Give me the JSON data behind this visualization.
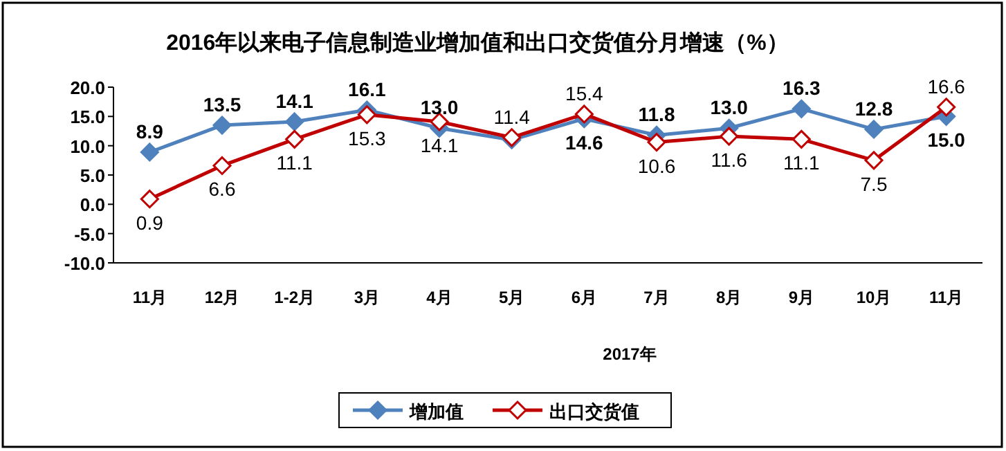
{
  "chart_data": {
    "type": "line",
    "title": "2016年以来电子信息制造业增加值和出口交货值分月增速（%）",
    "xlabel": "2017年",
    "categories": [
      "11月",
      "12月",
      "1-2月",
      "3月",
      "4月",
      "5月",
      "6月",
      "7月",
      "8月",
      "9月",
      "10月",
      "11月"
    ],
    "series": [
      {
        "name": "增加值",
        "color": "#4f81bd",
        "marker": "diamond",
        "values": [
          8.9,
          13.5,
          14.1,
          16.1,
          13.0,
          11.0,
          14.6,
          11.8,
          13.0,
          16.3,
          12.8,
          15.0
        ],
        "value_labels": [
          "8.9",
          "13.5",
          "14.1",
          "16.1",
          "13.0",
          null,
          "14.6",
          "11.8",
          "13.0",
          "16.3",
          "12.8",
          "15.0"
        ]
      },
      {
        "name": "出口交货值",
        "color": "#c00000",
        "marker": "diamond",
        "values": [
          0.9,
          6.6,
          11.1,
          15.3,
          14.1,
          11.4,
          15.4,
          10.6,
          11.6,
          11.1,
          7.5,
          16.6
        ],
        "value_labels": [
          "0.9",
          "6.6",
          "11.1",
          "15.3",
          "14.1",
          "11.4",
          "15.4",
          "10.6",
          "11.6",
          "11.1",
          "7.5",
          "16.6"
        ]
      }
    ],
    "ylim": [
      -10,
      20
    ],
    "yticks": [
      {
        "value": -10,
        "label": "-10.0"
      },
      {
        "value": -5,
        "label": "-5.0"
      },
      {
        "value": 0,
        "label": "0.0"
      },
      {
        "value": 5,
        "label": "5.0"
      },
      {
        "value": 10,
        "label": "10.0"
      },
      {
        "value": 15,
        "label": "15.0"
      },
      {
        "value": 20,
        "label": "20.0"
      }
    ],
    "grid": false,
    "legend": "bottom",
    "line_style": "solid"
  }
}
